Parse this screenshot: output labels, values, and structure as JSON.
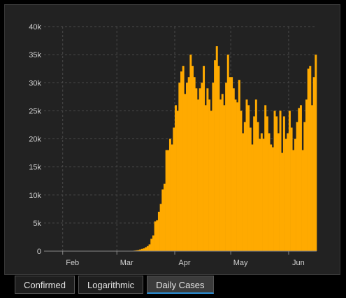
{
  "colors": {
    "bar": "#FFAA00",
    "grid": "#4a4a4a",
    "background": "#222222",
    "tab_active_underline": "#2b8fd6"
  },
  "tabs": [
    {
      "label": "Confirmed",
      "active": false
    },
    {
      "label": "Logarithmic",
      "active": false
    },
    {
      "label": "Daily Cases",
      "active": true
    }
  ],
  "chart_data": {
    "type": "bar",
    "title": "",
    "xlabel": "",
    "ylabel": "",
    "ylim": [
      0,
      40000
    ],
    "yticks": [
      0,
      5000,
      10000,
      15000,
      20000,
      25000,
      30000,
      35000,
      40000
    ],
    "ytick_labels": [
      "0",
      "5k",
      "10k",
      "15k",
      "20k",
      "25k",
      "30k",
      "35k",
      "40k"
    ],
    "xtick_labels": [
      "Feb",
      "Mar",
      "Apr",
      "May",
      "Jun"
    ],
    "grid": true,
    "xlim": [
      "2020-01-22",
      "2020-06-05"
    ],
    "start_date": "2020-01-22",
    "series": [
      {
        "values": [
          0,
          0,
          0,
          0,
          0,
          0,
          0,
          0,
          0,
          0,
          0,
          0,
          0,
          0,
          0,
          0,
          0,
          0,
          0,
          0,
          0,
          0,
          0,
          0,
          0,
          0,
          0,
          0,
          0,
          0,
          0,
          0,
          0,
          0,
          0,
          0,
          0,
          0,
          0,
          0,
          0,
          0,
          0,
          10,
          20,
          20,
          30,
          60,
          100,
          150,
          200,
          300,
          400,
          500,
          700,
          900,
          1200,
          2200,
          2800,
          5300,
          5500,
          7000,
          8400,
          11000,
          12000,
          18000,
          18000,
          20000,
          19000,
          22000,
          26000,
          25000,
          30000,
          32000,
          33000,
          28000,
          30000,
          31000,
          35000,
          33000,
          31000,
          29000,
          27000,
          29000,
          30000,
          33000,
          26000,
          29000,
          27000,
          25000,
          30000,
          34000,
          36500,
          33000,
          27000,
          28000,
          26000,
          30000,
          35000,
          31000,
          31000,
          29000,
          27000,
          26500,
          30500,
          25000,
          21000,
          23000,
          27000,
          26000,
          22000,
          19000,
          24000,
          27000,
          23000,
          20000,
          21000,
          20000,
          26000,
          24000,
          21000,
          19000,
          18500,
          25000,
          24000,
          21000,
          25000,
          17500,
          24000,
          20000,
          21000,
          25000,
          22000,
          18000,
          20000,
          23000,
          25500,
          26000,
          18000,
          23000,
          27000,
          32500,
          33000,
          26000,
          31000,
          35000
        ]
      }
    ]
  }
}
